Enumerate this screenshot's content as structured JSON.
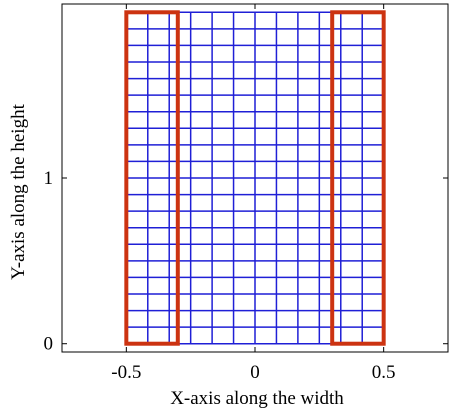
{
  "chart_data": {
    "type": "mesh",
    "xlabel": "X-axis along the width",
    "ylabel": "Y-axis along the height",
    "xlim": [
      -0.75,
      0.75
    ],
    "ylim": [
      -0.05,
      2.05
    ],
    "xticks": [
      {
        "value": -0.5,
        "label": "-0.5"
      },
      {
        "value": 0,
        "label": "0"
      },
      {
        "value": 0.5,
        "label": "0.5"
      }
    ],
    "yticks": [
      {
        "value": 0,
        "label": "0"
      },
      {
        "value": 1,
        "label": "1"
      }
    ],
    "mesh": {
      "x_range": [
        -0.5,
        0.5
      ],
      "y_range": [
        0,
        2
      ],
      "columns": 12,
      "rows": 20,
      "color": "#1f1fd6"
    },
    "highlight_regions": [
      {
        "x_range": [
          -0.5,
          -0.3
        ],
        "y_range": [
          0,
          2
        ],
        "color": "#cc3311"
      },
      {
        "x_range": [
          0.3,
          0.5
        ],
        "y_range": [
          0,
          2
        ],
        "color": "#cc3311"
      }
    ],
    "grid": false,
    "legend": "none"
  }
}
